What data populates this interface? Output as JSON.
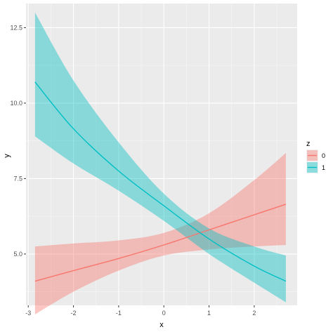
{
  "chart_data": {
    "type": "line",
    "xlabel": "x",
    "ylabel": "y",
    "xlim": [
      -3.05,
      2.95
    ],
    "ylim": [
      3.3,
      13.3
    ],
    "x_ticks": [
      -3,
      -2,
      -1,
      0,
      1,
      2
    ],
    "x_tick_labels": [
      "-3",
      "-2",
      "-1",
      "0",
      "1",
      "2"
    ],
    "y_ticks": [
      5.0,
      7.5,
      10.0,
      12.5
    ],
    "y_tick_labels": [
      "5.0",
      "7.5",
      "10.0",
      "12.5"
    ],
    "grid": true,
    "legend_title": "z",
    "legend_position": "right",
    "series": [
      {
        "name": "0",
        "color": "#F8766D",
        "x": [
          -2.85,
          -2,
          -1,
          0,
          1,
          2,
          2.7
        ],
        "y": [
          4.1,
          4.45,
          4.85,
          5.3,
          5.8,
          6.3,
          6.65
        ],
        "lower": [
          3.0,
          3.75,
          4.45,
          4.95,
          5.15,
          5.25,
          5.3
        ],
        "upper": [
          5.25,
          5.35,
          5.45,
          5.7,
          6.35,
          7.45,
          8.35
        ]
      },
      {
        "name": "1",
        "color": "#00BFC4",
        "x": [
          -2.85,
          -2,
          -1,
          0,
          1,
          2,
          2.7
        ],
        "y": [
          10.7,
          9.15,
          7.75,
          6.6,
          5.5,
          4.6,
          4.1
        ],
        "lower": [
          8.9,
          8.0,
          7.1,
          6.1,
          5.0,
          4.05,
          3.4
        ],
        "upper": [
          13.0,
          10.75,
          8.7,
          7.0,
          5.85,
          5.25,
          4.95
        ]
      }
    ]
  }
}
